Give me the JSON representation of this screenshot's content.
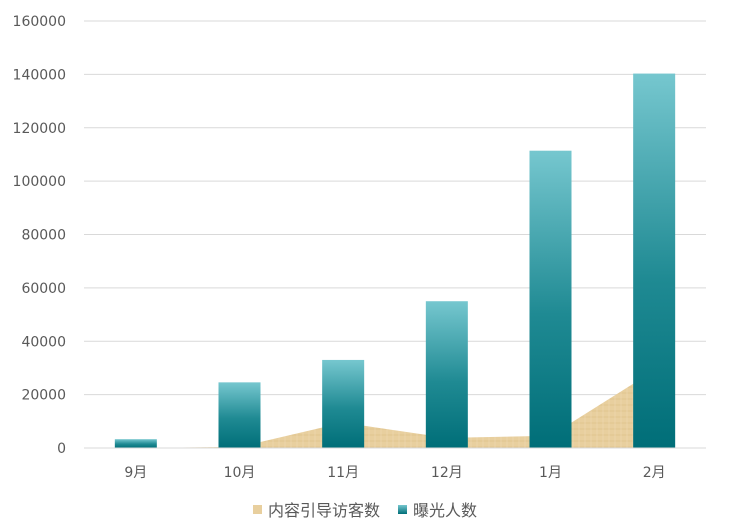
{
  "chart_data": {
    "type": "bar",
    "categories": [
      "9月",
      "10月",
      "11月",
      "12月",
      "1月",
      "2月"
    ],
    "series": [
      {
        "name": "内容引导访客数",
        "kind": "area",
        "values": [
          0,
          400,
          9500,
          3800,
          4600,
          29000
        ]
      },
      {
        "name": "曝光人数",
        "kind": "bar",
        "values": [
          3300,
          24600,
          33000,
          55000,
          111400,
          140300
        ]
      }
    ],
    "y_ticks": [
      "0",
      "20000",
      "40000",
      "60000",
      "80000",
      "100000",
      "120000",
      "140000",
      "160000"
    ],
    "ylim": [
      0,
      160000
    ],
    "grid": true,
    "legend_position": "bottom",
    "colors": {
      "area_fill": "#e8cf9e",
      "bar_top": "#76c7cf",
      "bar_bottom": "#006e78",
      "grid": "#d9d9d9",
      "text": "#595959"
    }
  }
}
